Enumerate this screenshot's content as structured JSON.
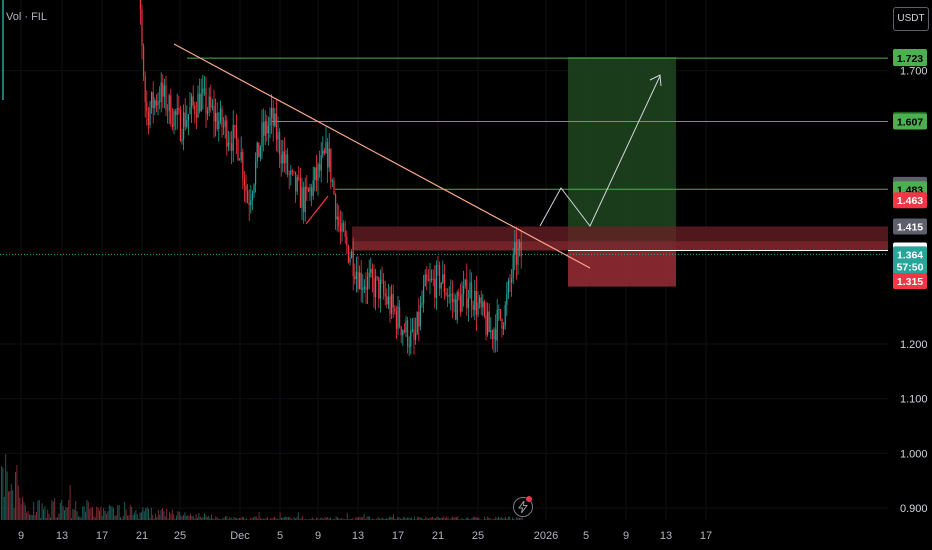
{
  "header": {
    "indicator_label": "Vol · FIL",
    "currency_label": "USDT"
  },
  "colors": {
    "up": "#26a69a",
    "down": "#f23645",
    "level_line": "#4caf50",
    "trendline": "#f7a98b",
    "target_zone": "#1e4620",
    "stop_zone": "#9b2d35",
    "bolt": "#787b86"
  },
  "icons": {
    "bolt": "lightning-icon"
  },
  "chart_data": {
    "type": "candlestick",
    "y_axis": {
      "range": [
        0.875,
        1.745
      ],
      "ticks": [
        "1.700",
        "1.200",
        "1.100",
        "1.000",
        "0.900"
      ]
    },
    "x_axis": {
      "ticks": [
        "9",
        "13",
        "17",
        "21",
        "25",
        "Dec",
        "5",
        "9",
        "13",
        "17",
        "21",
        "25",
        "2026",
        "5",
        "9",
        "13",
        "17"
      ]
    },
    "price_labels": [
      {
        "text": "1.725",
        "value": 1.725,
        "bg": "#4caf50",
        "fg": "#000000"
      },
      {
        "text": "1.723",
        "value": 1.723,
        "bg": "#4caf50",
        "fg": "#000000"
      },
      {
        "text": "1.610",
        "value": 1.61,
        "bg": "#1b5e20",
        "fg": "#ffffff"
      },
      {
        "text": "1.607",
        "value": 1.607,
        "bg": "#4caf50",
        "fg": "#000000"
      },
      {
        "text": "1.491",
        "value": 1.491,
        "bg": "#5d606b",
        "fg": "#ffffff"
      },
      {
        "text": "1.483",
        "value": 1.483,
        "bg": "#4caf50",
        "fg": "#000000"
      },
      {
        "text": "1.463",
        "value": 1.463,
        "bg": "#f23645",
        "fg": "#ffffff"
      },
      {
        "text": "1.415",
        "value": 1.415,
        "bg": "#5d606b",
        "fg": "#ffffff"
      },
      {
        "text": "1.371",
        "value": 1.371,
        "bg": "#ffffff",
        "fg": "#000000"
      },
      {
        "text": "1.364",
        "value": 1.364,
        "bg": "#26a69a",
        "fg": "#ffffff"
      },
      {
        "text": "57:50",
        "value": 1.342,
        "bg": "#26a69a",
        "fg": "#ffffff"
      },
      {
        "text": "1.315",
        "value": 1.315,
        "bg": "#f23645",
        "fg": "#ffffff"
      }
    ],
    "levels": [
      1.723,
      1.607,
      1.483,
      1.371
    ],
    "current_price": 1.364,
    "trendline": {
      "from": [
        "Nov 21",
        1.74
      ],
      "to": [
        "Jan 7",
        1.31
      ]
    },
    "position": {
      "entry": 1.371,
      "target": 1.725,
      "stop": 1.305,
      "from": "Jan 4",
      "to": "Jan 14"
    },
    "path": [
      1.371,
      1.483,
      1.4,
      1.7
    ]
  }
}
